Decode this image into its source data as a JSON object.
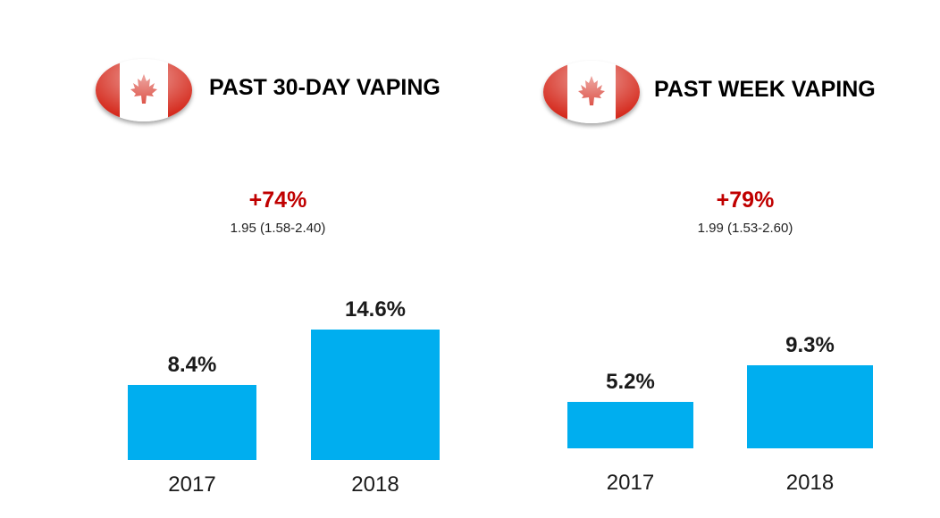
{
  "colors": {
    "bar": "#00AEEF",
    "accent_red": "#C00000",
    "flag_red": "#D52B1E"
  },
  "left": {
    "title": "PAST 30-DAY VAPING",
    "flag_icon": "canada-flag-icon",
    "change": "+74%",
    "ratio": "1.95 (1.58-2.40)"
  },
  "right": {
    "title": "PAST WEEK VAPING",
    "flag_icon": "canada-flag-icon",
    "change": "+79%",
    "ratio": "1.99 (1.53-2.60)"
  },
  "chart_data": [
    {
      "type": "bar",
      "title": "PAST 30-DAY VAPING",
      "categories": [
        "2017",
        "2018"
      ],
      "values": [
        8.4,
        14.6
      ],
      "value_labels": [
        "8.4%",
        "14.6%"
      ],
      "unit": "%",
      "ylim": [
        0,
        17
      ],
      "grid": false
    },
    {
      "type": "bar",
      "title": "PAST WEEK VAPING",
      "categories": [
        "2017",
        "2018"
      ],
      "values": [
        5.2,
        9.3
      ],
      "value_labels": [
        "5.2%",
        "9.3%"
      ],
      "unit": "%",
      "ylim": [
        0,
        17
      ],
      "grid": false
    }
  ]
}
